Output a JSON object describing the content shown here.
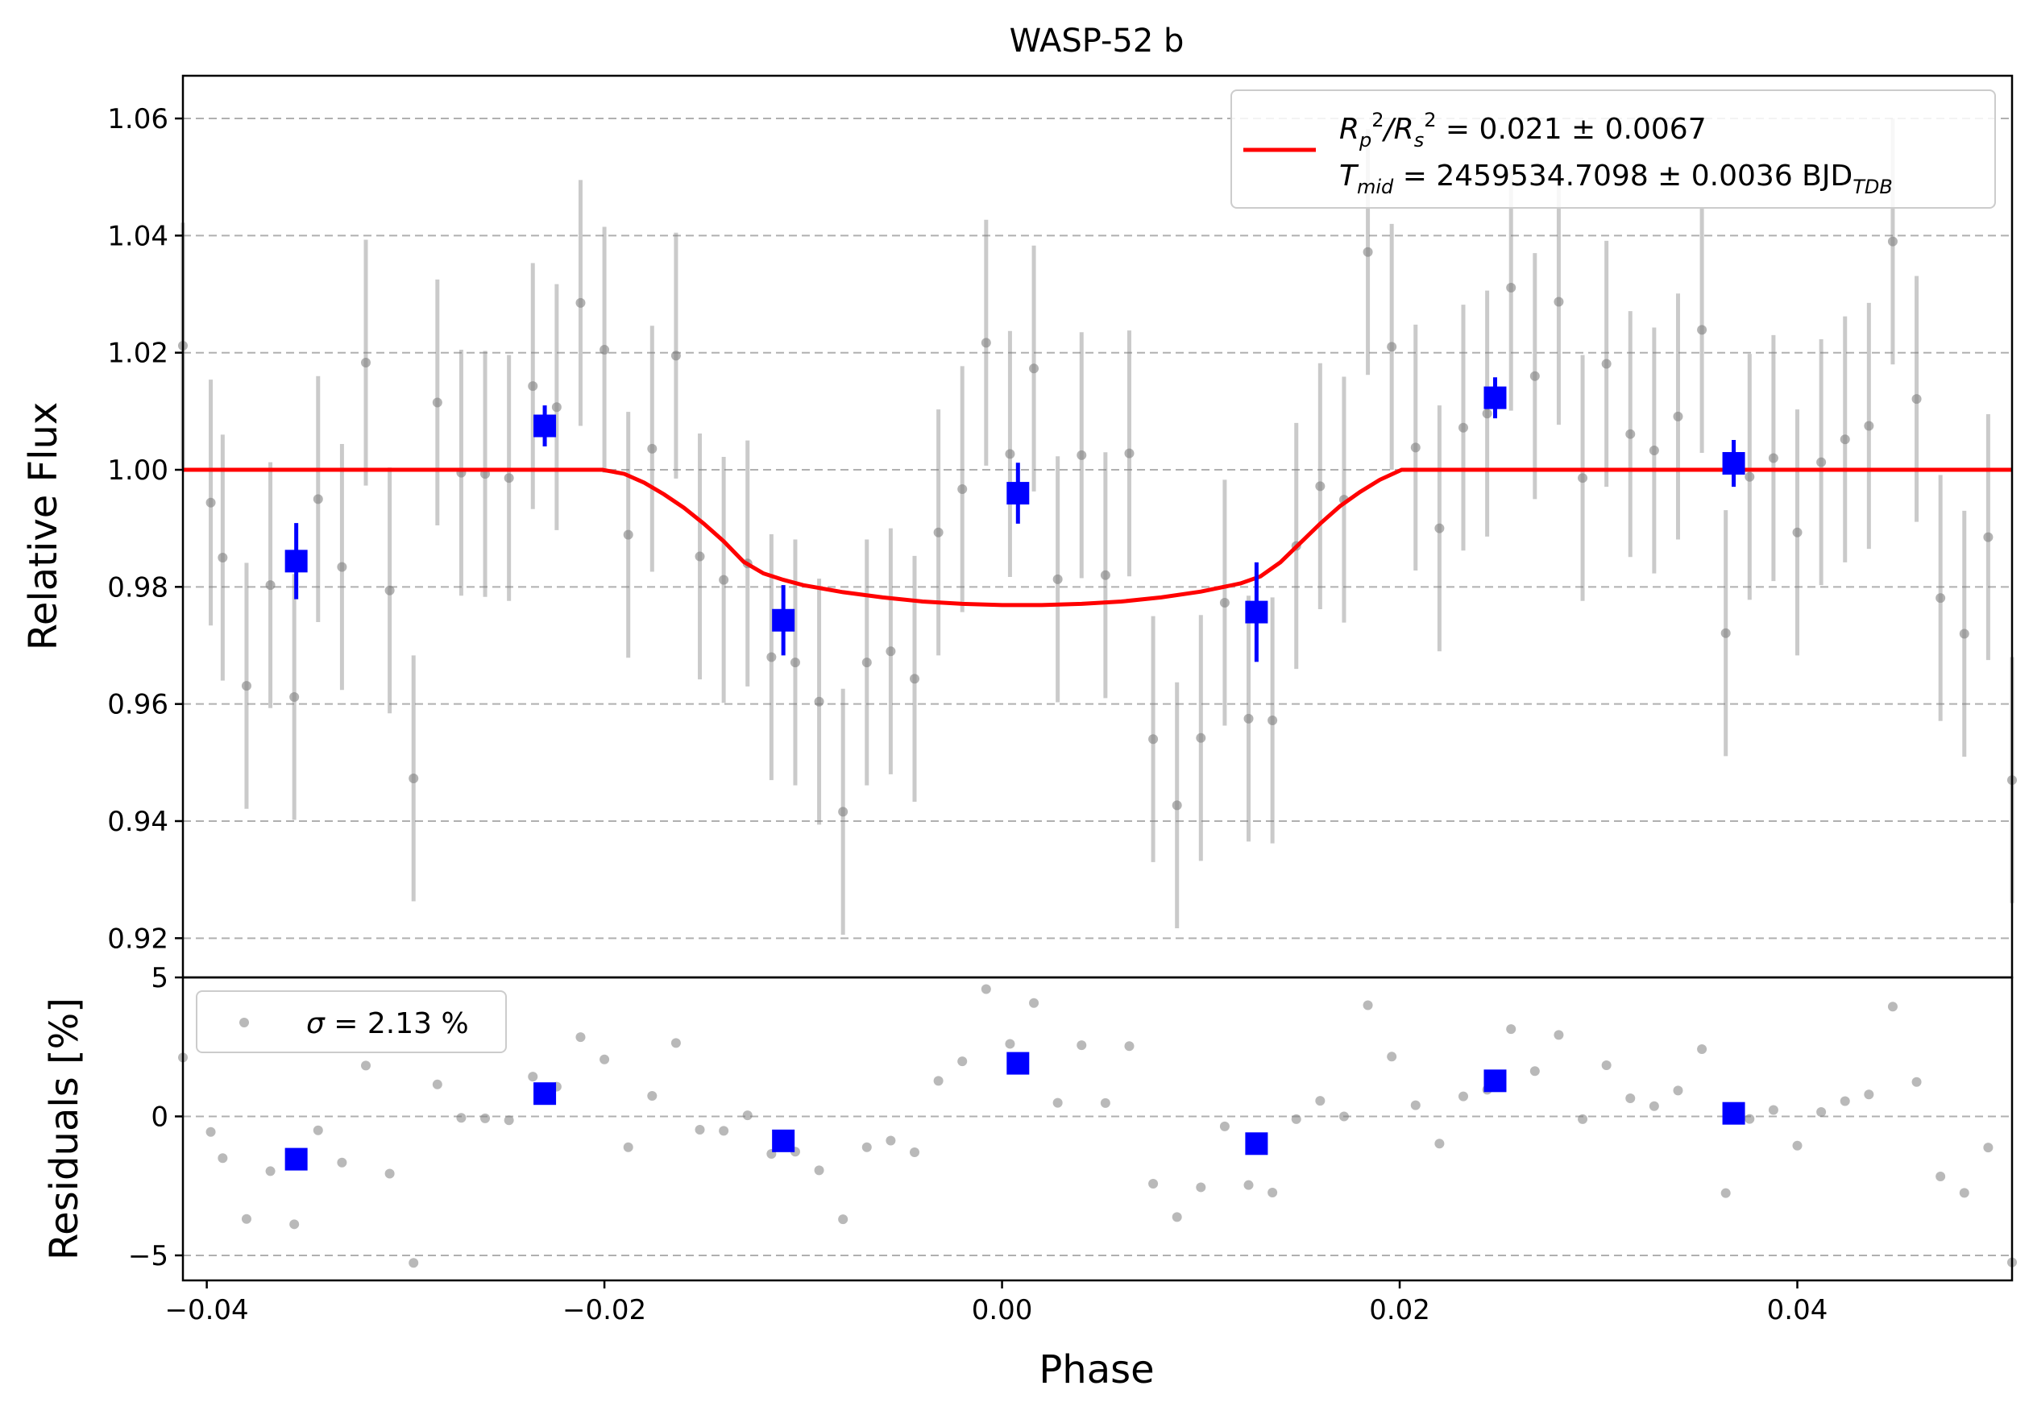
{
  "chart_data": {
    "type": "scatter",
    "title": "WASP-52 b",
    "xlabel": "Phase",
    "xlim": [
      -0.0412,
      0.0508
    ],
    "xticks": [
      -0.04,
      -0.02,
      0.0,
      0.02,
      0.04
    ],
    "xtick_labels": [
      "−0.04",
      "−0.02",
      "0.00",
      "0.02",
      "0.04"
    ],
    "top_panel": {
      "ylabel": "Relative Flux",
      "ylim": [
        0.9133,
        1.0673
      ],
      "yticks": [
        0.92,
        0.94,
        0.96,
        0.98,
        1.0,
        1.02,
        1.04,
        1.06
      ],
      "ytick_labels": [
        "0.92",
        "0.94",
        "0.96",
        "0.98",
        "1.00",
        "1.02",
        "1.04",
        "1.06"
      ],
      "grid": true,
      "legend": {
        "placement": "top-right",
        "line1_a": "R",
        "line1_b": "p",
        "line1_c": "2",
        "line1_d": "/R",
        "line1_e": "s",
        "line1_f": "2",
        "line1_g": " = 0.021 ± 0.0067",
        "line2_a": "T",
        "line2_b": "mid",
        "line2_c": " = 2459534.7098 ± 0.0036 BJD",
        "line2_d": "TDB"
      },
      "model": {
        "name": "transit model",
        "color": "#ff0000",
        "points": [
          [
            -0.0412,
            1.0
          ],
          [
            -0.0201,
            1.0
          ],
          [
            -0.019,
            0.9993
          ],
          [
            -0.018,
            0.9978
          ],
          [
            -0.017,
            0.9958
          ],
          [
            -0.016,
            0.9935
          ],
          [
            -0.015,
            0.9908
          ],
          [
            -0.014,
            0.9878
          ],
          [
            -0.013,
            0.9843
          ],
          [
            -0.012,
            0.9823
          ],
          [
            -0.011,
            0.9812
          ],
          [
            -0.01,
            0.9803
          ],
          [
            -0.008,
            0.9791
          ],
          [
            -0.006,
            0.9782
          ],
          [
            -0.004,
            0.9775
          ],
          [
            -0.002,
            0.9771
          ],
          [
            0.0,
            0.9769
          ],
          [
            0.002,
            0.9769
          ],
          [
            0.004,
            0.9771
          ],
          [
            0.006,
            0.9775
          ],
          [
            0.008,
            0.9782
          ],
          [
            0.01,
            0.9792
          ],
          [
            0.012,
            0.9806
          ],
          [
            0.013,
            0.9818
          ],
          [
            0.014,
            0.9842
          ],
          [
            0.015,
            0.9875
          ],
          [
            0.016,
            0.9908
          ],
          [
            0.017,
            0.9938
          ],
          [
            0.018,
            0.9962
          ],
          [
            0.019,
            0.9983
          ],
          [
            0.0201,
            1.0
          ],
          [
            0.0508,
            1.0
          ]
        ]
      },
      "data_color": "#808080",
      "data": [
        [
          -0.0412,
          1.0212,
          0.021
        ],
        [
          -0.0398,
          0.9944,
          0.021
        ],
        [
          -0.0392,
          0.985,
          0.021
        ],
        [
          -0.038,
          0.9631,
          0.021
        ],
        [
          -0.0368,
          0.9803,
          0.021
        ],
        [
          -0.0356,
          0.9612,
          0.021
        ],
        [
          -0.0344,
          0.995,
          0.021
        ],
        [
          -0.0332,
          0.9834,
          0.021
        ],
        [
          -0.032,
          1.0183,
          0.021
        ],
        [
          -0.0308,
          0.9794,
          0.021
        ],
        [
          -0.0296,
          0.9473,
          0.021
        ],
        [
          -0.0284,
          1.0115,
          0.021
        ],
        [
          -0.0272,
          0.9995,
          0.021
        ],
        [
          -0.026,
          0.9993,
          0.021
        ],
        [
          -0.0248,
          0.9986,
          0.021
        ],
        [
          -0.0236,
          1.0143,
          0.021
        ],
        [
          -0.0224,
          1.0107,
          0.021
        ],
        [
          -0.0212,
          1.0285,
          0.021
        ],
        [
          -0.02,
          1.0205,
          0.021
        ],
        [
          -0.0188,
          0.9889,
          0.021
        ],
        [
          -0.0176,
          1.0036,
          0.021
        ],
        [
          -0.0164,
          1.0195,
          0.021
        ],
        [
          -0.0152,
          0.9852,
          0.021
        ],
        [
          -0.014,
          0.9812,
          0.021
        ],
        [
          -0.0128,
          0.984,
          0.021
        ],
        [
          -0.0116,
          0.968,
          0.021
        ],
        [
          -0.0104,
          0.9671,
          0.021
        ],
        [
          -0.0092,
          0.9604,
          0.021
        ],
        [
          -0.008,
          0.9416,
          0.021
        ],
        [
          -0.0068,
          0.9671,
          0.021
        ],
        [
          -0.0056,
          0.969,
          0.021
        ],
        [
          -0.0044,
          0.9643,
          0.021
        ],
        [
          -0.0032,
          0.9893,
          0.021
        ],
        [
          -0.002,
          0.9967,
          0.021
        ],
        [
          -0.0008,
          1.0217,
          0.021
        ],
        [
          0.0004,
          1.0027,
          0.021
        ],
        [
          0.0016,
          1.0173,
          0.021
        ],
        [
          0.0028,
          0.9813,
          0.021
        ],
        [
          0.004,
          1.0025,
          0.021
        ],
        [
          0.0052,
          0.982,
          0.021
        ],
        [
          0.0064,
          1.0028,
          0.021
        ],
        [
          0.0076,
          0.954,
          0.021
        ],
        [
          0.0088,
          0.9427,
          0.021
        ],
        [
          0.01,
          0.9542,
          0.021
        ],
        [
          0.0112,
          0.9773,
          0.021
        ],
        [
          0.0124,
          0.9575,
          0.021
        ],
        [
          0.0136,
          0.9572,
          0.021
        ],
        [
          0.0148,
          0.987,
          0.021
        ],
        [
          0.016,
          0.9972,
          0.021
        ],
        [
          0.0172,
          0.9949,
          0.021
        ],
        [
          0.0184,
          1.0372,
          0.021
        ],
        [
          0.0196,
          1.021,
          0.021
        ],
        [
          0.0208,
          1.0038,
          0.021
        ],
        [
          0.022,
          0.99,
          0.021
        ],
        [
          0.0232,
          1.0072,
          0.021
        ],
        [
          0.0244,
          1.0096,
          0.021
        ],
        [
          0.0256,
          1.0311,
          0.021
        ],
        [
          0.0268,
          1.016,
          0.021
        ],
        [
          0.028,
          1.0287,
          0.021
        ],
        [
          0.0292,
          0.9986,
          0.021
        ],
        [
          0.0304,
          1.0181,
          0.021
        ],
        [
          0.0316,
          1.0061,
          0.021
        ],
        [
          0.0328,
          1.0033,
          0.021
        ],
        [
          0.034,
          1.0091,
          0.021
        ],
        [
          0.0352,
          1.0239,
          0.021
        ],
        [
          0.0364,
          0.9721,
          0.021
        ],
        [
          0.0376,
          0.9988,
          0.021
        ],
        [
          0.0388,
          1.002,
          0.021
        ],
        [
          0.04,
          0.9893,
          0.021
        ],
        [
          0.0412,
          1.0013,
          0.021
        ],
        [
          0.0424,
          1.0052,
          0.021
        ],
        [
          0.0436,
          1.0075,
          0.021
        ],
        [
          0.0448,
          1.039,
          0.021
        ],
        [
          0.046,
          1.0121,
          0.021
        ],
        [
          0.0472,
          0.9781,
          0.021
        ],
        [
          0.0484,
          0.972,
          0.021
        ],
        [
          0.0496,
          0.9885,
          0.021
        ],
        [
          0.0508,
          0.947,
          0.021
        ]
      ],
      "binned_color": "#0000ff",
      "binned": [
        [
          -0.0355,
          0.9844,
          0.0065
        ],
        [
          -0.023,
          1.0075,
          0.0035
        ],
        [
          -0.011,
          0.9743,
          0.006
        ],
        [
          0.0008,
          0.996,
          0.0052
        ],
        [
          0.0128,
          0.9757,
          0.0085
        ],
        [
          0.0248,
          1.0123,
          0.0035
        ],
        [
          0.0368,
          1.0011,
          0.004
        ]
      ]
    },
    "bottom_panel": {
      "ylabel": "Residuals [%]",
      "ylim": [
        -5.9,
        5.0
      ],
      "yticks": [
        -5,
        0,
        5
      ],
      "ytick_labels": [
        "−5",
        "0",
        "5"
      ],
      "grid": true,
      "legend": {
        "placement": "top-left",
        "label_a": "σ",
        "label_b": " = 2.13 %"
      },
      "data": [
        [
          -0.0412,
          2.12
        ],
        [
          -0.0398,
          -0.56
        ],
        [
          -0.0392,
          -1.5
        ],
        [
          -0.038,
          -3.69
        ],
        [
          -0.0368,
          -1.97
        ],
        [
          -0.0356,
          -3.88
        ],
        [
          -0.0344,
          -0.5
        ],
        [
          -0.0332,
          -1.66
        ],
        [
          -0.032,
          1.83
        ],
        [
          -0.0308,
          -2.06
        ],
        [
          -0.0296,
          -5.27
        ],
        [
          -0.0284,
          1.15
        ],
        [
          -0.0272,
          -0.05
        ],
        [
          -0.026,
          -0.07
        ],
        [
          -0.0248,
          -0.14
        ],
        [
          -0.0236,
          1.43
        ],
        [
          -0.0224,
          1.07
        ],
        [
          -0.0212,
          2.85
        ],
        [
          -0.02,
          2.05
        ],
        [
          -0.0188,
          -1.11
        ],
        [
          -0.0176,
          0.74
        ],
        [
          -0.0164,
          2.64
        ],
        [
          -0.0152,
          -0.48
        ],
        [
          -0.014,
          -0.52
        ],
        [
          -0.0128,
          0.04
        ],
        [
          -0.0116,
          -1.35
        ],
        [
          -0.0104,
          -1.27
        ],
        [
          -0.0092,
          -1.94
        ],
        [
          -0.008,
          -3.7
        ],
        [
          -0.0068,
          -1.11
        ],
        [
          -0.0056,
          -0.87
        ],
        [
          -0.0044,
          -1.29
        ],
        [
          -0.0032,
          1.28
        ],
        [
          -0.002,
          1.98
        ],
        [
          -0.0008,
          4.58
        ],
        [
          0.0004,
          2.61
        ],
        [
          0.0016,
          4.08
        ],
        [
          0.0028,
          0.49
        ],
        [
          0.004,
          2.56
        ],
        [
          0.0052,
          0.48
        ],
        [
          0.0064,
          2.53
        ],
        [
          0.0076,
          -2.42
        ],
        [
          0.0088,
          -3.62
        ],
        [
          0.01,
          -2.55
        ],
        [
          0.0112,
          -0.36
        ],
        [
          0.0124,
          -2.47
        ],
        [
          0.0136,
          -2.74
        ],
        [
          0.0148,
          -0.1
        ],
        [
          0.016,
          0.56
        ],
        [
          0.0172,
          0.0
        ],
        [
          0.0184,
          4.0
        ],
        [
          0.0196,
          2.15
        ],
        [
          0.0208,
          0.4
        ],
        [
          0.022,
          -0.98
        ],
        [
          0.0232,
          0.72
        ],
        [
          0.0244,
          0.96
        ],
        [
          0.0256,
          3.14
        ],
        [
          0.0268,
          1.63
        ],
        [
          0.028,
          2.93
        ],
        [
          0.0292,
          -0.1
        ],
        [
          0.0304,
          1.84
        ],
        [
          0.0316,
          0.65
        ],
        [
          0.0328,
          0.37
        ],
        [
          0.034,
          0.93
        ],
        [
          0.0352,
          2.42
        ],
        [
          0.0364,
          -2.76
        ],
        [
          0.0376,
          -0.09
        ],
        [
          0.0388,
          0.23
        ],
        [
          0.04,
          -1.05
        ],
        [
          0.0412,
          0.16
        ],
        [
          0.0424,
          0.55
        ],
        [
          0.0436,
          0.79
        ],
        [
          0.0448,
          3.95
        ],
        [
          0.046,
          1.24
        ],
        [
          0.0472,
          -2.16
        ],
        [
          0.0484,
          -2.75
        ],
        [
          0.0496,
          -1.12
        ],
        [
          0.0508,
          -5.25
        ]
      ],
      "binned": [
        [
          -0.0355,
          -1.54
        ],
        [
          -0.023,
          0.82
        ],
        [
          -0.011,
          -0.88
        ],
        [
          0.0008,
          1.91
        ],
        [
          0.0128,
          -0.98
        ],
        [
          0.0248,
          1.28
        ],
        [
          0.0368,
          0.11
        ]
      ]
    }
  }
}
